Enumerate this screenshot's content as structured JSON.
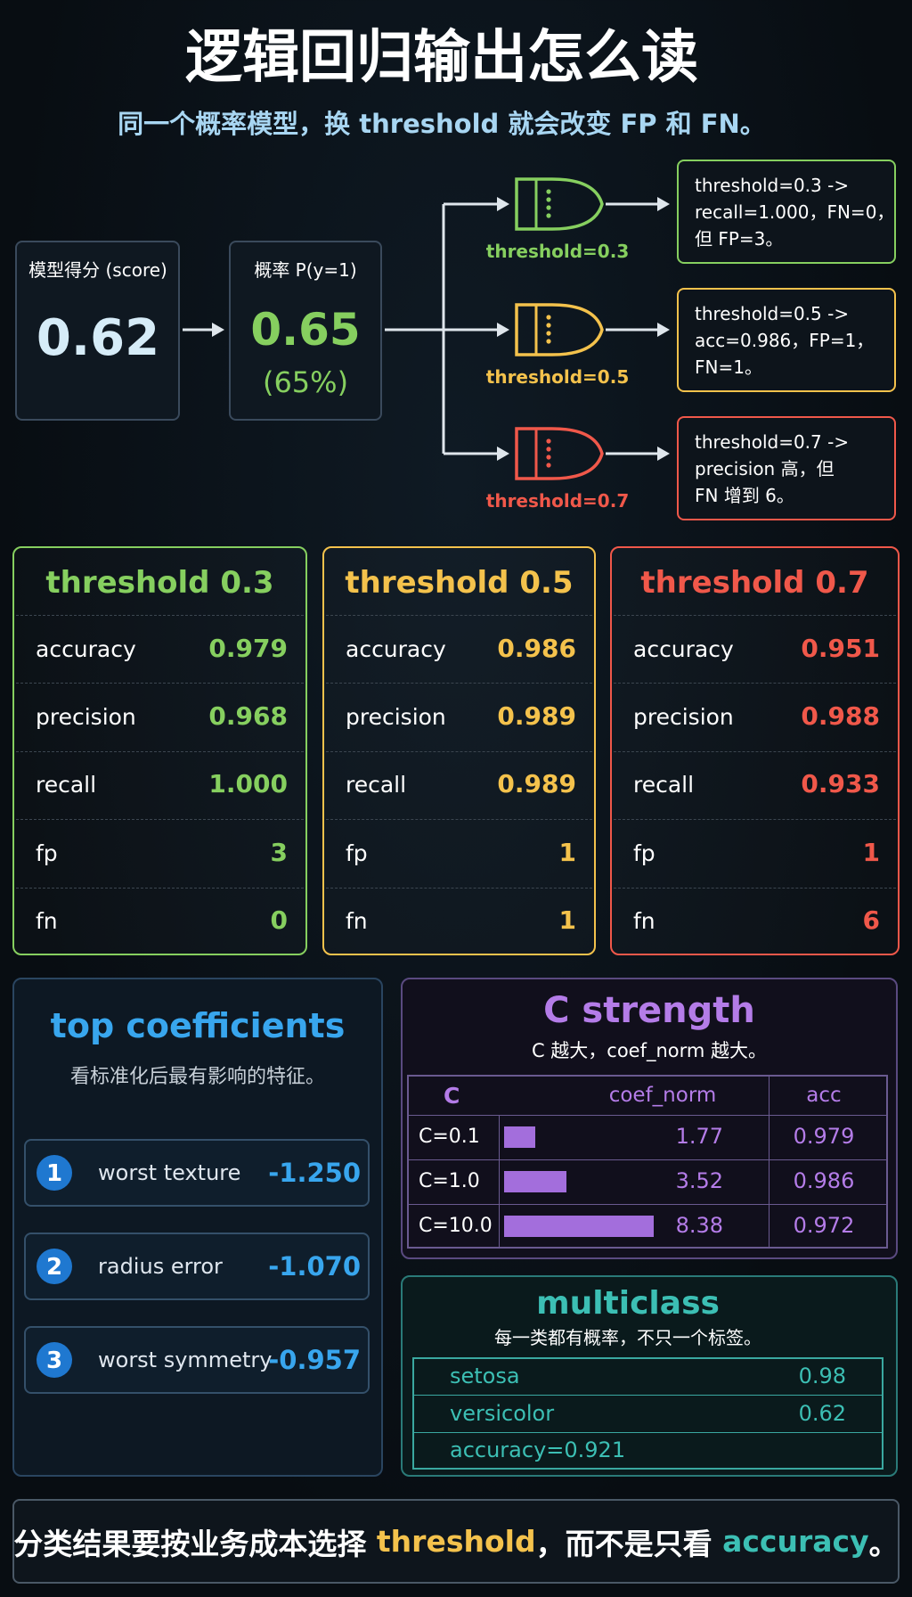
{
  "header": {
    "title": "逻辑回归输出怎么读",
    "subtitle": "同一个概率模型，换 threshold 就会改变 FP 和 FN。"
  },
  "flow": {
    "score": {
      "label": "模型得分 (score)",
      "value": "0.62"
    },
    "prob": {
      "label": "概率 P(y=1)",
      "value": "0.65",
      "percent": "(65%)"
    },
    "branches": [
      {
        "gate": "threshold=0.3",
        "note": [
          "threshold=0.3 ->",
          "recall=1.000，FN=0，",
          "但 FP=3。"
        ]
      },
      {
        "gate": "threshold=0.5",
        "note": [
          "threshold=0.5 ->",
          "acc=0.986，FP=1，",
          "FN=1。"
        ]
      },
      {
        "gate": "threshold=0.7",
        "note": [
          "threshold=0.7 ->",
          "precision 高，但",
          "FN 增到 6。"
        ]
      }
    ]
  },
  "thresholds": [
    {
      "title": "threshold 0.3",
      "rows": [
        [
          "accuracy",
          "0.979"
        ],
        [
          "precision",
          "0.968"
        ],
        [
          "recall",
          "1.000"
        ],
        [
          "fp",
          "3"
        ],
        [
          "fn",
          "0"
        ]
      ]
    },
    {
      "title": "threshold 0.5",
      "rows": [
        [
          "accuracy",
          "0.986"
        ],
        [
          "precision",
          "0.989"
        ],
        [
          "recall",
          "0.989"
        ],
        [
          "fp",
          "1"
        ],
        [
          "fn",
          "1"
        ]
      ]
    },
    {
      "title": "threshold 0.7",
      "rows": [
        [
          "accuracy",
          "0.951"
        ],
        [
          "precision",
          "0.988"
        ],
        [
          "recall",
          "0.933"
        ],
        [
          "fp",
          "1"
        ],
        [
          "fn",
          "6"
        ]
      ]
    }
  ],
  "coefficients": {
    "title": "top coefficients",
    "subtitle": "看标准化后最有影响的特征。",
    "items": [
      {
        "rank": "1",
        "name": "worst texture",
        "value": "-1.250"
      },
      {
        "rank": "2",
        "name": "radius error",
        "value": "-1.070"
      },
      {
        "rank": "3",
        "name": "worst symmetry",
        "value": "-0.957"
      }
    ]
  },
  "c_strength": {
    "title": "C strength",
    "subtitle": "C 越大，coef_norm 越大。",
    "columns": [
      "C",
      "coef_norm",
      "acc"
    ],
    "rows": [
      {
        "C": "C=0.1",
        "coef_norm": 1.77,
        "acc": "0.979"
      },
      {
        "C": "C=1.0",
        "coef_norm": 3.52,
        "acc": "0.986"
      },
      {
        "C": "C=10.0",
        "coef_norm": 8.38,
        "acc": "0.972"
      }
    ]
  },
  "multiclass": {
    "title": "multiclass",
    "subtitle": "每一类都有概率，不只一个标签。",
    "rows": [
      {
        "label": "setosa",
        "value": "0.98"
      },
      {
        "label": "versicolor",
        "value": "0.62"
      }
    ],
    "summary": "accuracy=0.921"
  },
  "footer": {
    "parts": [
      "分类结果要按业务成本选择 ",
      "threshold",
      "，而不是只看 ",
      "accuracy",
      "。"
    ]
  }
}
